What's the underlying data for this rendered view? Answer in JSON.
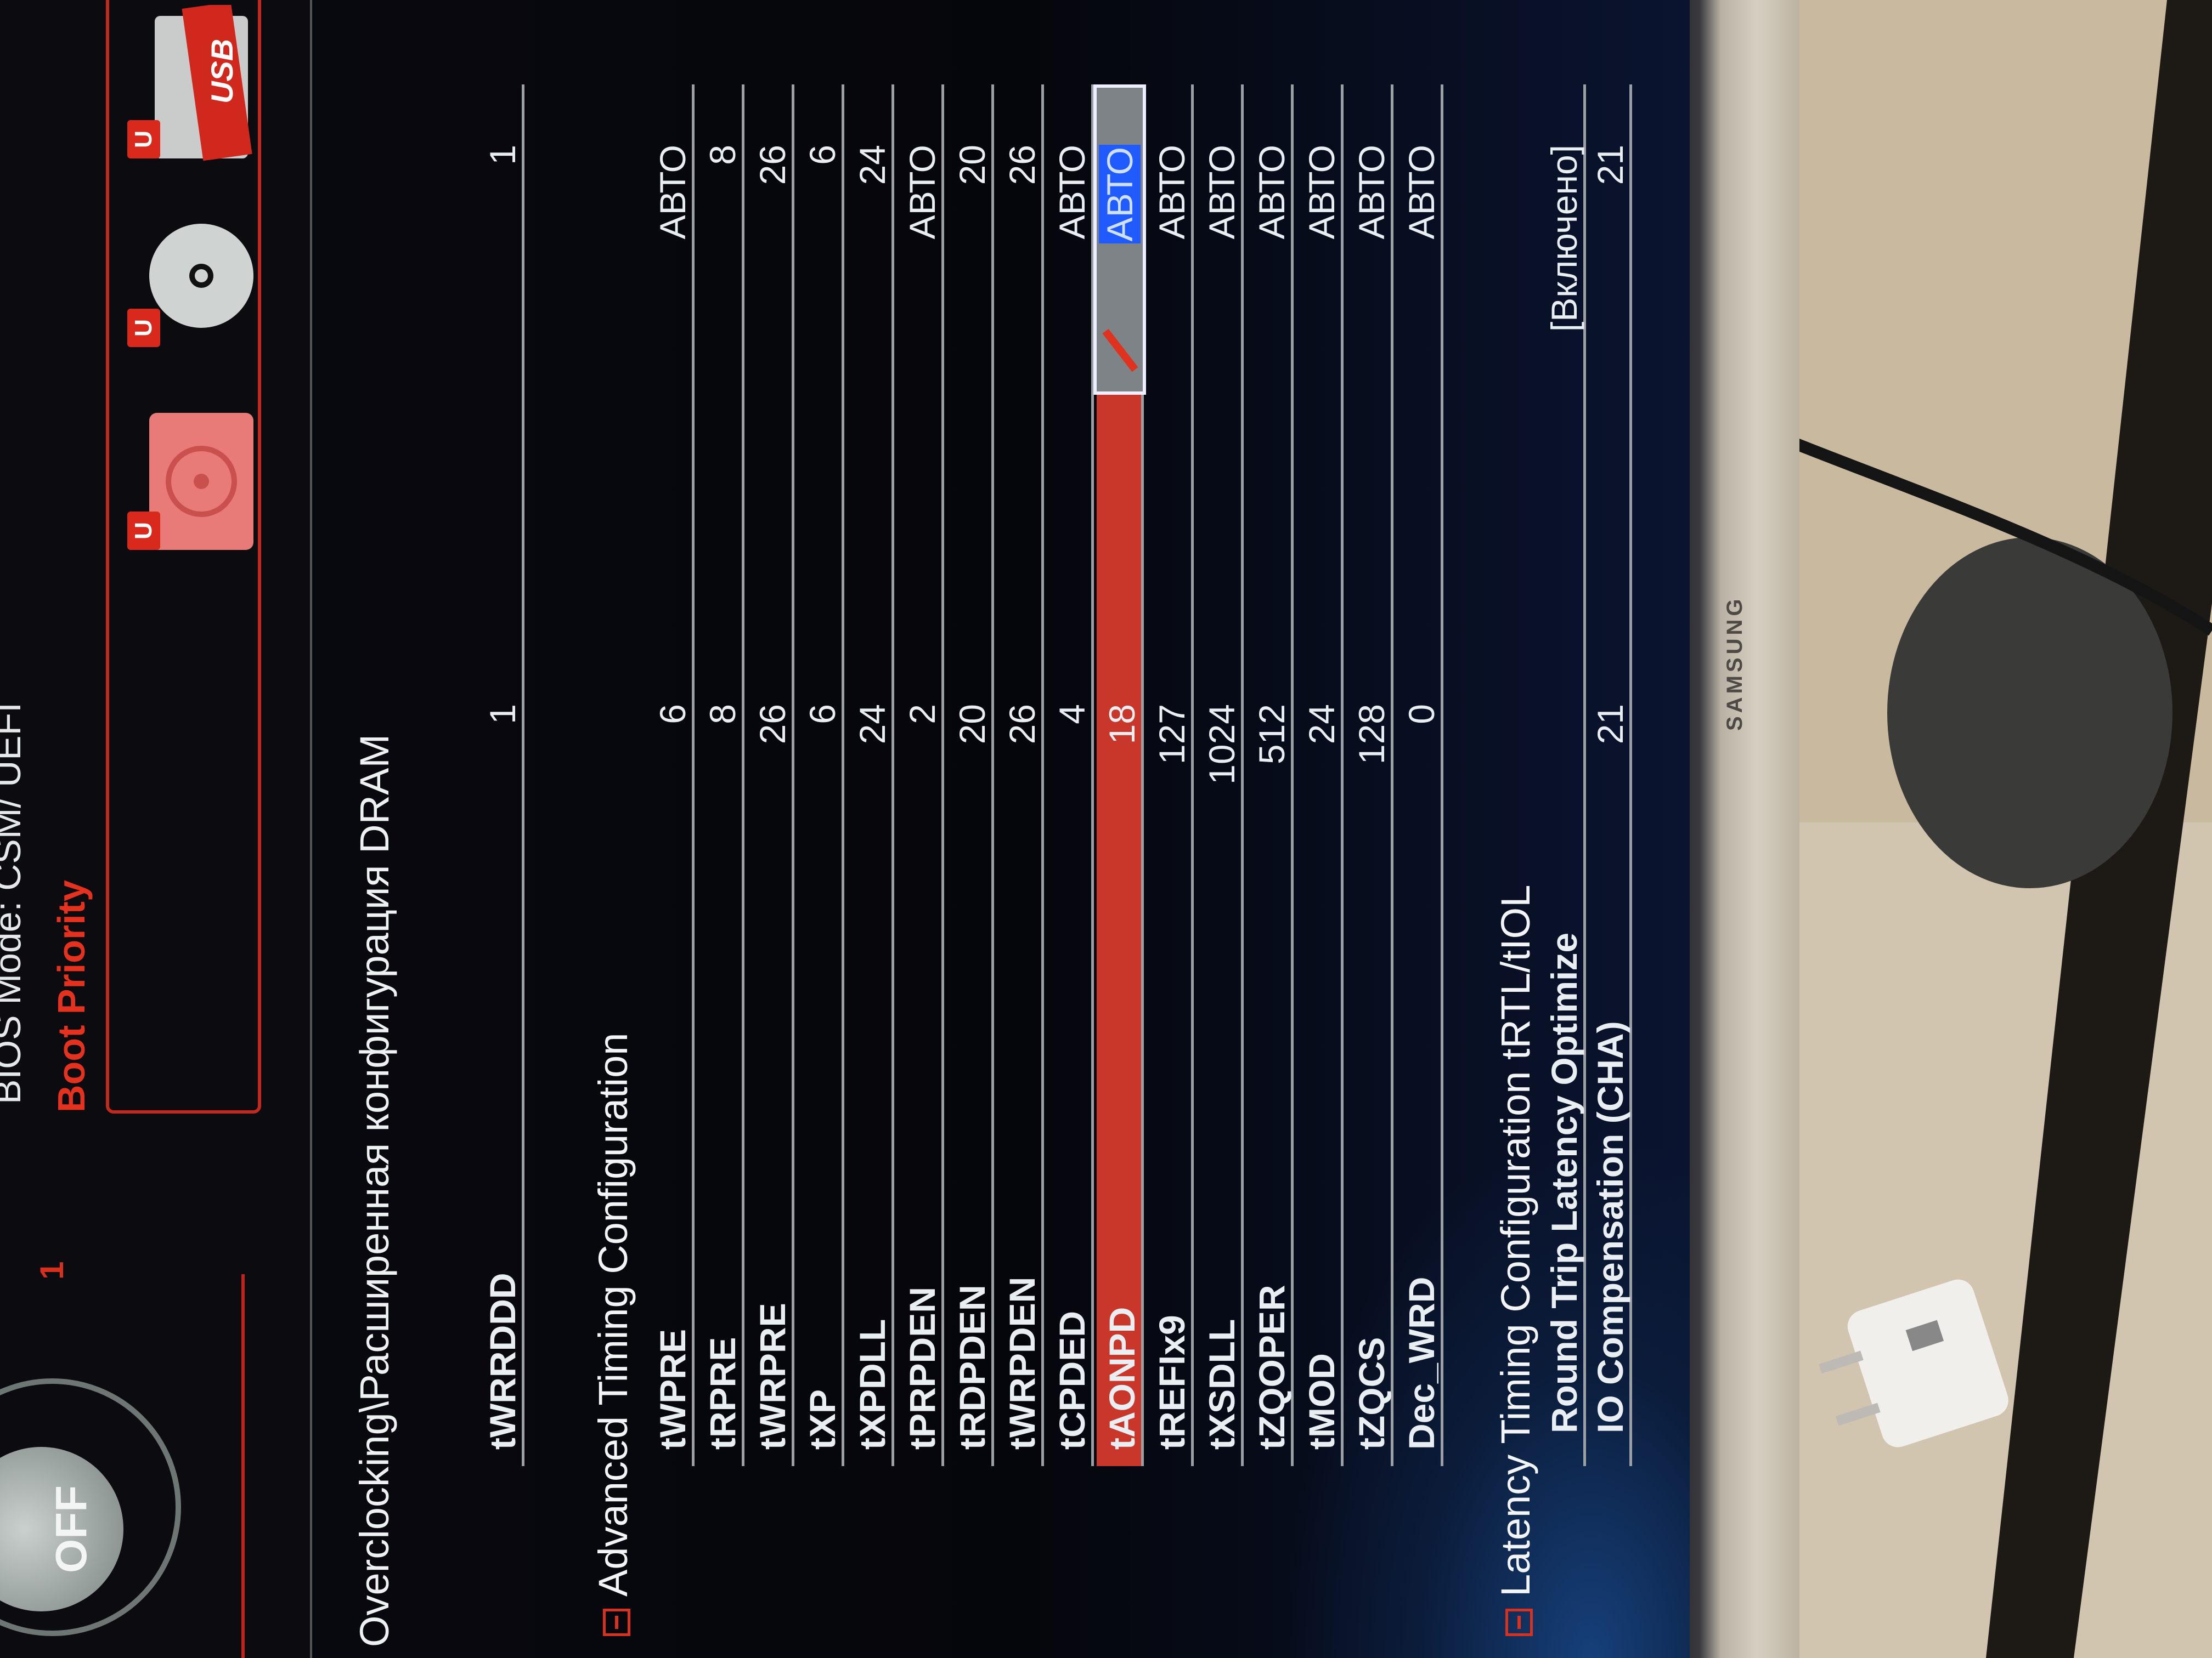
{
  "header": {
    "xmp_button": "OFF",
    "profile_number": "1",
    "bios_mode": "BIOS Mode: CSM/ UEFI",
    "boot_priority_title": "Boot Priority",
    "boot_devices": [
      {
        "type": "hard-disk-icon",
        "badge": "U"
      },
      {
        "type": "optical-disc-icon",
        "badge": "U"
      },
      {
        "type": "usb-drive-icon",
        "badge": "U",
        "label": "USB"
      }
    ],
    "accent": "#d9291d"
  },
  "breadcrumb": "Overclocking\\Расширенная конфигурация DRAM",
  "top_row": {
    "label": "tWRRDDD",
    "value": "1",
    "setting": "1"
  },
  "advanced": {
    "title": "Advanced Timing Configuration",
    "rows": [
      {
        "label": "tWPRE",
        "value": "6",
        "setting": "АВТО"
      },
      {
        "label": "tRPRE",
        "value": "8",
        "setting": "8"
      },
      {
        "label": "tWRPRE",
        "value": "26",
        "setting": "26"
      },
      {
        "label": "tXP",
        "value": "6",
        "setting": "6"
      },
      {
        "label": "tXPDLL",
        "value": "24",
        "setting": "24"
      },
      {
        "label": "tPRPDEN",
        "value": "2",
        "setting": "АВТО"
      },
      {
        "label": "tRDPDEN",
        "value": "20",
        "setting": "20"
      },
      {
        "label": "tWRPDEN",
        "value": "26",
        "setting": "26"
      },
      {
        "label": "tCPDED",
        "value": "4",
        "setting": "АВТО"
      },
      {
        "label": "tAONPD",
        "value": "18",
        "setting": "АВТО",
        "selected": true
      },
      {
        "label": "tREFIx9",
        "value": "127",
        "setting": "АВТО"
      },
      {
        "label": "tXSDLL",
        "value": "1024",
        "setting": "АВТО"
      },
      {
        "label": "tZQOPER",
        "value": "512",
        "setting": "АВТО"
      },
      {
        "label": "tMOD",
        "value": "24",
        "setting": "АВТО"
      },
      {
        "label": "tZQCS",
        "value": "128",
        "setting": "АВТО"
      },
      {
        "label": "Dec_WRD",
        "value": "0",
        "setting": "АВТО"
      }
    ]
  },
  "latency": {
    "title": "Latency Timing Configuration tRTL/tIOL",
    "rows": [
      {
        "label": "Round Trip Latency Optimize",
        "value": "",
        "setting": "[Включено]"
      },
      {
        "label": "IO Compensation (CHA)",
        "value": "21",
        "setting": "21"
      }
    ]
  },
  "monitor_brand": "SAMSUNG",
  "colors": {
    "selected_row": "#c8372a",
    "edit_highlight": "#1f5bff",
    "row_line": "#9aa0a3"
  }
}
